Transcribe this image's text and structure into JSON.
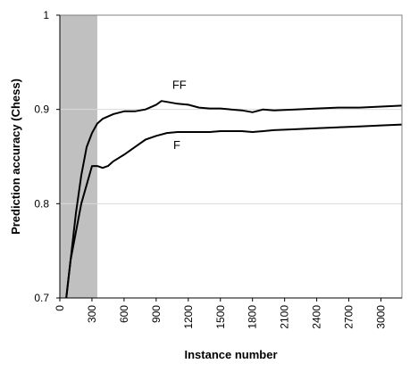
{
  "chart_data": {
    "type": "line",
    "title": "",
    "xlabel": "Instance number",
    "ylabel": "Prediction accuracy (Chess)",
    "xlim": [
      0,
      3196
    ],
    "ylim": [
      0.7,
      1.0
    ],
    "xticks": [
      0,
      300,
      600,
      900,
      1200,
      1500,
      1800,
      2100,
      2400,
      2700,
      3000
    ],
    "yticks": [
      0.7,
      0.8,
      0.9,
      1.0
    ],
    "ytick_labels": [
      "0.7",
      "0.8",
      "0.9",
      "1"
    ],
    "grid": "horizontal",
    "legend": "none",
    "shaded_region": {
      "x": [
        0,
        350
      ],
      "color": "#c0c0c0"
    },
    "series": [
      {
        "name": "FF",
        "color": "#000000",
        "x": [
          60,
          100,
          150,
          200,
          250,
          300,
          350,
          400,
          500,
          600,
          700,
          800,
          900,
          950,
          1000,
          1100,
          1200,
          1300,
          1400,
          1500,
          1600,
          1700,
          1800,
          1900,
          2000,
          2200,
          2400,
          2600,
          2800,
          3000,
          3196
        ],
        "y": [
          0.7,
          0.74,
          0.79,
          0.83,
          0.86,
          0.875,
          0.885,
          0.89,
          0.895,
          0.898,
          0.898,
          0.9,
          0.905,
          0.909,
          0.908,
          0.906,
          0.905,
          0.902,
          0.901,
          0.901,
          0.9,
          0.899,
          0.897,
          0.9,
          0.899,
          0.9,
          0.901,
          0.902,
          0.902,
          0.903,
          0.904
        ]
      },
      {
        "name": "F",
        "color": "#000000",
        "x": [
          60,
          100,
          150,
          200,
          250,
          300,
          350,
          400,
          450,
          500,
          600,
          700,
          800,
          900,
          1000,
          1100,
          1200,
          1300,
          1400,
          1500,
          1600,
          1700,
          1800,
          1900,
          2000,
          2200,
          2400,
          2600,
          2800,
          3000,
          3196
        ],
        "y": [
          0.7,
          0.74,
          0.77,
          0.8,
          0.82,
          0.84,
          0.84,
          0.838,
          0.84,
          0.845,
          0.852,
          0.86,
          0.868,
          0.872,
          0.875,
          0.876,
          0.876,
          0.876,
          0.876,
          0.877,
          0.877,
          0.877,
          0.876,
          0.877,
          0.878,
          0.879,
          0.88,
          0.881,
          0.882,
          0.883,
          0.884
        ]
      }
    ],
    "annotations": [
      {
        "text": "FF",
        "x": 1050,
        "y": 0.922
      },
      {
        "text": "F",
        "x": 1060,
        "y": 0.858
      }
    ]
  }
}
